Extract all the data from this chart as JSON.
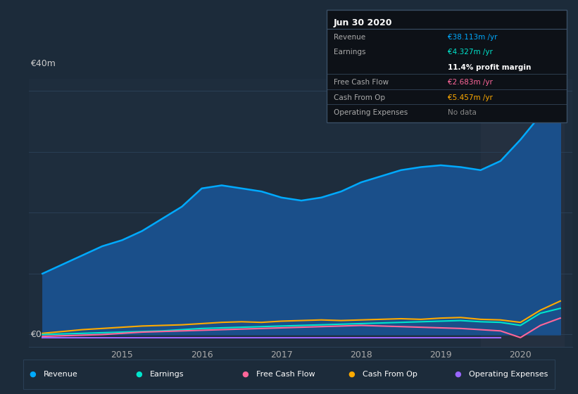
{
  "background_color": "#1c2b3a",
  "plot_bg_color": "#1e2d3d",
  "highlight_bg_color": "#243040",
  "grid_color": "#2a3f55",
  "ylabel_top": "€40m",
  "ylabel_zero": "€0",
  "x_years": [
    2014.0,
    2014.25,
    2014.5,
    2014.75,
    2015.0,
    2015.25,
    2015.5,
    2015.75,
    2016.0,
    2016.25,
    2016.5,
    2016.75,
    2017.0,
    2017.25,
    2017.5,
    2017.75,
    2018.0,
    2018.25,
    2018.5,
    2018.75,
    2019.0,
    2019.25,
    2019.5,
    2019.75,
    2020.0,
    2020.25,
    2020.5
  ],
  "revenue": [
    10.0,
    11.5,
    13.0,
    14.5,
    15.5,
    17.0,
    19.0,
    21.0,
    24.0,
    24.5,
    24.0,
    23.5,
    22.5,
    22.0,
    22.5,
    23.5,
    25.0,
    26.0,
    27.0,
    27.5,
    27.8,
    27.5,
    27.0,
    28.5,
    32.0,
    36.0,
    38.1
  ],
  "earnings": [
    0.0,
    0.1,
    0.2,
    0.3,
    0.4,
    0.5,
    0.6,
    0.8,
    1.0,
    1.1,
    1.2,
    1.3,
    1.4,
    1.5,
    1.6,
    1.7,
    1.8,
    1.9,
    2.0,
    2.1,
    2.2,
    2.3,
    2.1,
    2.0,
    1.5,
    3.5,
    4.3
  ],
  "free_cash_flow": [
    -0.3,
    -0.2,
    -0.1,
    0.0,
    0.2,
    0.4,
    0.5,
    0.6,
    0.7,
    0.8,
    0.9,
    1.0,
    1.1,
    1.2,
    1.3,
    1.4,
    1.5,
    1.4,
    1.3,
    1.2,
    1.1,
    1.0,
    0.8,
    0.6,
    -0.5,
    1.5,
    2.7
  ],
  "cash_from_op": [
    0.2,
    0.5,
    0.8,
    1.0,
    1.2,
    1.4,
    1.5,
    1.6,
    1.8,
    2.0,
    2.1,
    2.0,
    2.2,
    2.3,
    2.4,
    2.3,
    2.4,
    2.5,
    2.6,
    2.5,
    2.7,
    2.8,
    2.5,
    2.4,
    2.0,
    4.0,
    5.5
  ],
  "operating_expenses": [
    -0.5,
    -0.5,
    -0.5,
    -0.5,
    -0.5,
    -0.5,
    -0.5,
    -0.5,
    -0.5,
    -0.5,
    -0.5,
    -0.5,
    -0.5,
    -0.5,
    -0.5,
    -0.5,
    -0.5,
    -0.5,
    -0.5,
    -0.5,
    -0.5,
    -0.5,
    -0.5,
    -0.5,
    null,
    null,
    null
  ],
  "revenue_color": "#00aaff",
  "revenue_fill": "#1a4f8a",
  "earnings_color": "#00e5cc",
  "fcf_color": "#ff6699",
  "cashop_color": "#ffaa00",
  "opex_color": "#9966ff",
  "highlight_x_start": 2019.5,
  "highlight_x_end": 2020.55,
  "ylim": [
    -2,
    42
  ],
  "xlim": [
    2013.83,
    2020.65
  ],
  "tooltip_title": "Jun 30 2020",
  "tooltip_rows": [
    {
      "label": "Revenue",
      "value": "€38.113m /yr",
      "value_color": "#00aaff",
      "separator_above": false
    },
    {
      "label": "Earnings",
      "value": "€4.327m /yr",
      "value_color": "#00e5cc",
      "separator_above": false
    },
    {
      "label": "",
      "value": "11.4% profit margin",
      "value_color": "#ffffff",
      "separator_above": false,
      "bold": true
    },
    {
      "label": "Free Cash Flow",
      "value": "€2.683m /yr",
      "value_color": "#ff6699",
      "separator_above": true
    },
    {
      "label": "Cash From Op",
      "value": "€5.457m /yr",
      "value_color": "#ffaa00",
      "separator_above": true
    },
    {
      "label": "Operating Expenses",
      "value": "No data",
      "value_color": "#888888",
      "separator_above": true
    }
  ],
  "tooltip_bg": "#0d1117",
  "tooltip_border": "#3a4f66",
  "legend_items": [
    {
      "label": "Revenue",
      "color": "#00aaff"
    },
    {
      "label": "Earnings",
      "color": "#00e5cc"
    },
    {
      "label": "Free Cash Flow",
      "color": "#ff6699"
    },
    {
      "label": "Cash From Op",
      "color": "#ffaa00"
    },
    {
      "label": "Operating Expenses",
      "color": "#9966ff"
    }
  ]
}
